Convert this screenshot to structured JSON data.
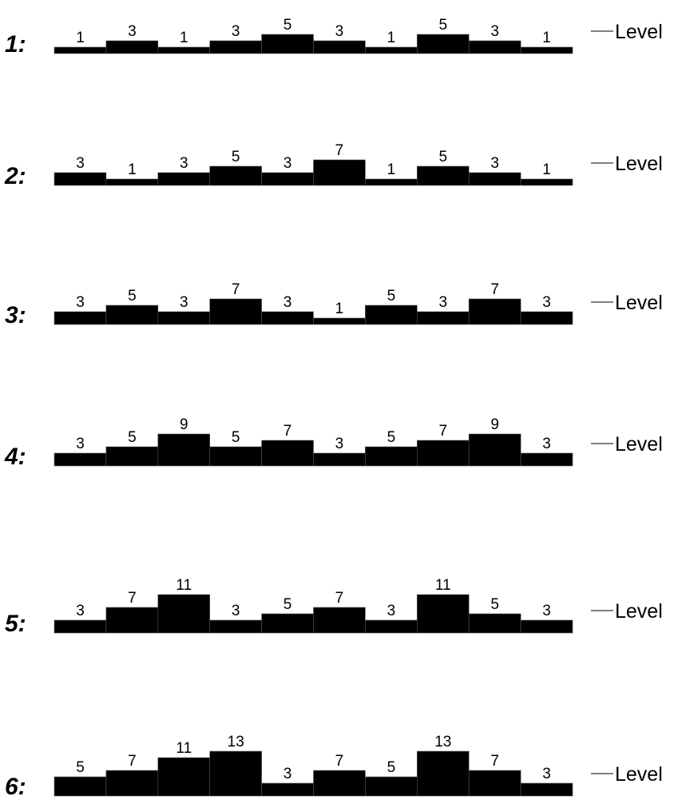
{
  "level_word": "Level",
  "rows": [
    {
      "label": "1:",
      "values": [
        1,
        3,
        1,
        3,
        5,
        3,
        1,
        5,
        3,
        1
      ]
    },
    {
      "label": "2:",
      "values": [
        3,
        1,
        3,
        5,
        3,
        7,
        1,
        5,
        3,
        1
      ]
    },
    {
      "label": "3:",
      "values": [
        3,
        5,
        3,
        7,
        3,
        1,
        5,
        3,
        7,
        3
      ]
    },
    {
      "label": "4:",
      "values": [
        3,
        5,
        9,
        5,
        7,
        3,
        5,
        7,
        9,
        3
      ]
    },
    {
      "label": "5:",
      "values": [
        3,
        7,
        11,
        3,
        5,
        7,
        3,
        11,
        5,
        3
      ]
    },
    {
      "label": "6:",
      "values": [
        5,
        7,
        11,
        13,
        3,
        7,
        5,
        13,
        7,
        3
      ]
    }
  ]
}
